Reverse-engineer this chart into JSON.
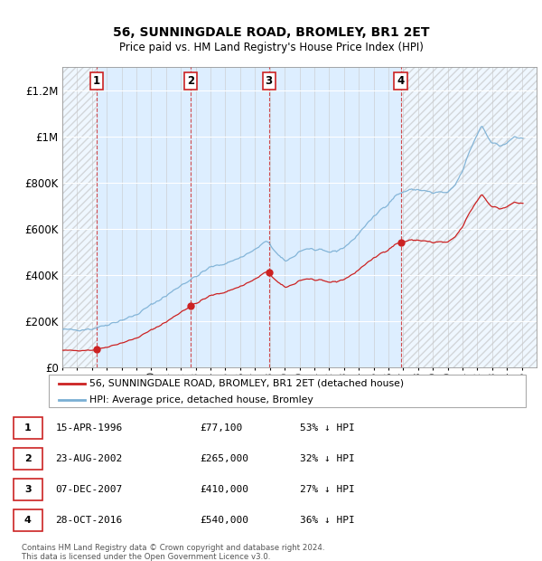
{
  "title": "56, SUNNINGDALE ROAD, BROMLEY, BR1 2ET",
  "subtitle": "Price paid vs. HM Land Registry's House Price Index (HPI)",
  "ylim": [
    0,
    1300000
  ],
  "yticks": [
    0,
    200000,
    400000,
    600000,
    800000,
    1000000,
    1200000
  ],
  "ytick_labels": [
    "£0",
    "£200K",
    "£400K",
    "£600K",
    "£800K",
    "£1M",
    "£1.2M"
  ],
  "x_start_year": 1994,
  "x_end_year": 2026,
  "sales": [
    {
      "num": 1,
      "date": 1996.29,
      "price": 77100
    },
    {
      "num": 2,
      "date": 2002.64,
      "price": 265000
    },
    {
      "num": 3,
      "date": 2007.93,
      "price": 410000
    },
    {
      "num": 4,
      "date": 2016.83,
      "price": 540000
    }
  ],
  "hpi_color": "#7aafd4",
  "sale_color": "#cc2222",
  "background_color": "#ddeeff",
  "legend_label_sale": "56, SUNNINGDALE ROAD, BROMLEY, BR1 2ET (detached house)",
  "legend_label_hpi": "HPI: Average price, detached house, Bromley",
  "footer_line1": "Contains HM Land Registry data © Crown copyright and database right 2024.",
  "footer_line2": "This data is licensed under the Open Government Licence v3.0.",
  "table": [
    {
      "num": 1,
      "date": "15-APR-1996",
      "price": "£77,100",
      "note": "53% ↓ HPI"
    },
    {
      "num": 2,
      "date": "23-AUG-2002",
      "price": "£265,000",
      "note": "32% ↓ HPI"
    },
    {
      "num": 3,
      "date": "07-DEC-2007",
      "price": "£410,000",
      "note": "27% ↓ HPI"
    },
    {
      "num": 4,
      "date": "28-OCT-2016",
      "price": "£540,000",
      "note": "36% ↓ HPI"
    }
  ]
}
